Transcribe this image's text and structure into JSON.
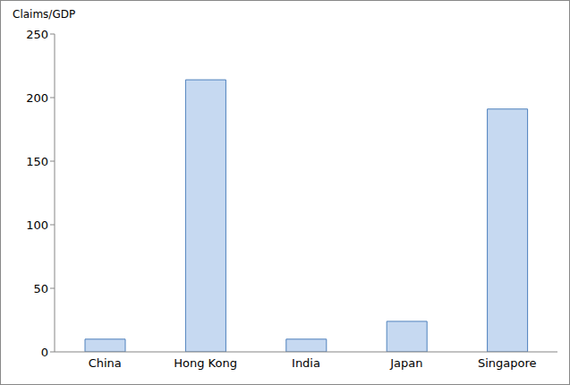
{
  "chart_data": {
    "type": "bar",
    "y_label": "Claims/GDP",
    "categories": [
      "China",
      "Hong Kong",
      "India",
      "Japan",
      "Singapore"
    ],
    "values": [
      10,
      214,
      10,
      24,
      191
    ],
    "color": "#c6d9f1",
    "ylim": [
      0,
      250
    ],
    "yticks": [
      0,
      50,
      100,
      150,
      200,
      250
    ],
    "grid": false
  }
}
